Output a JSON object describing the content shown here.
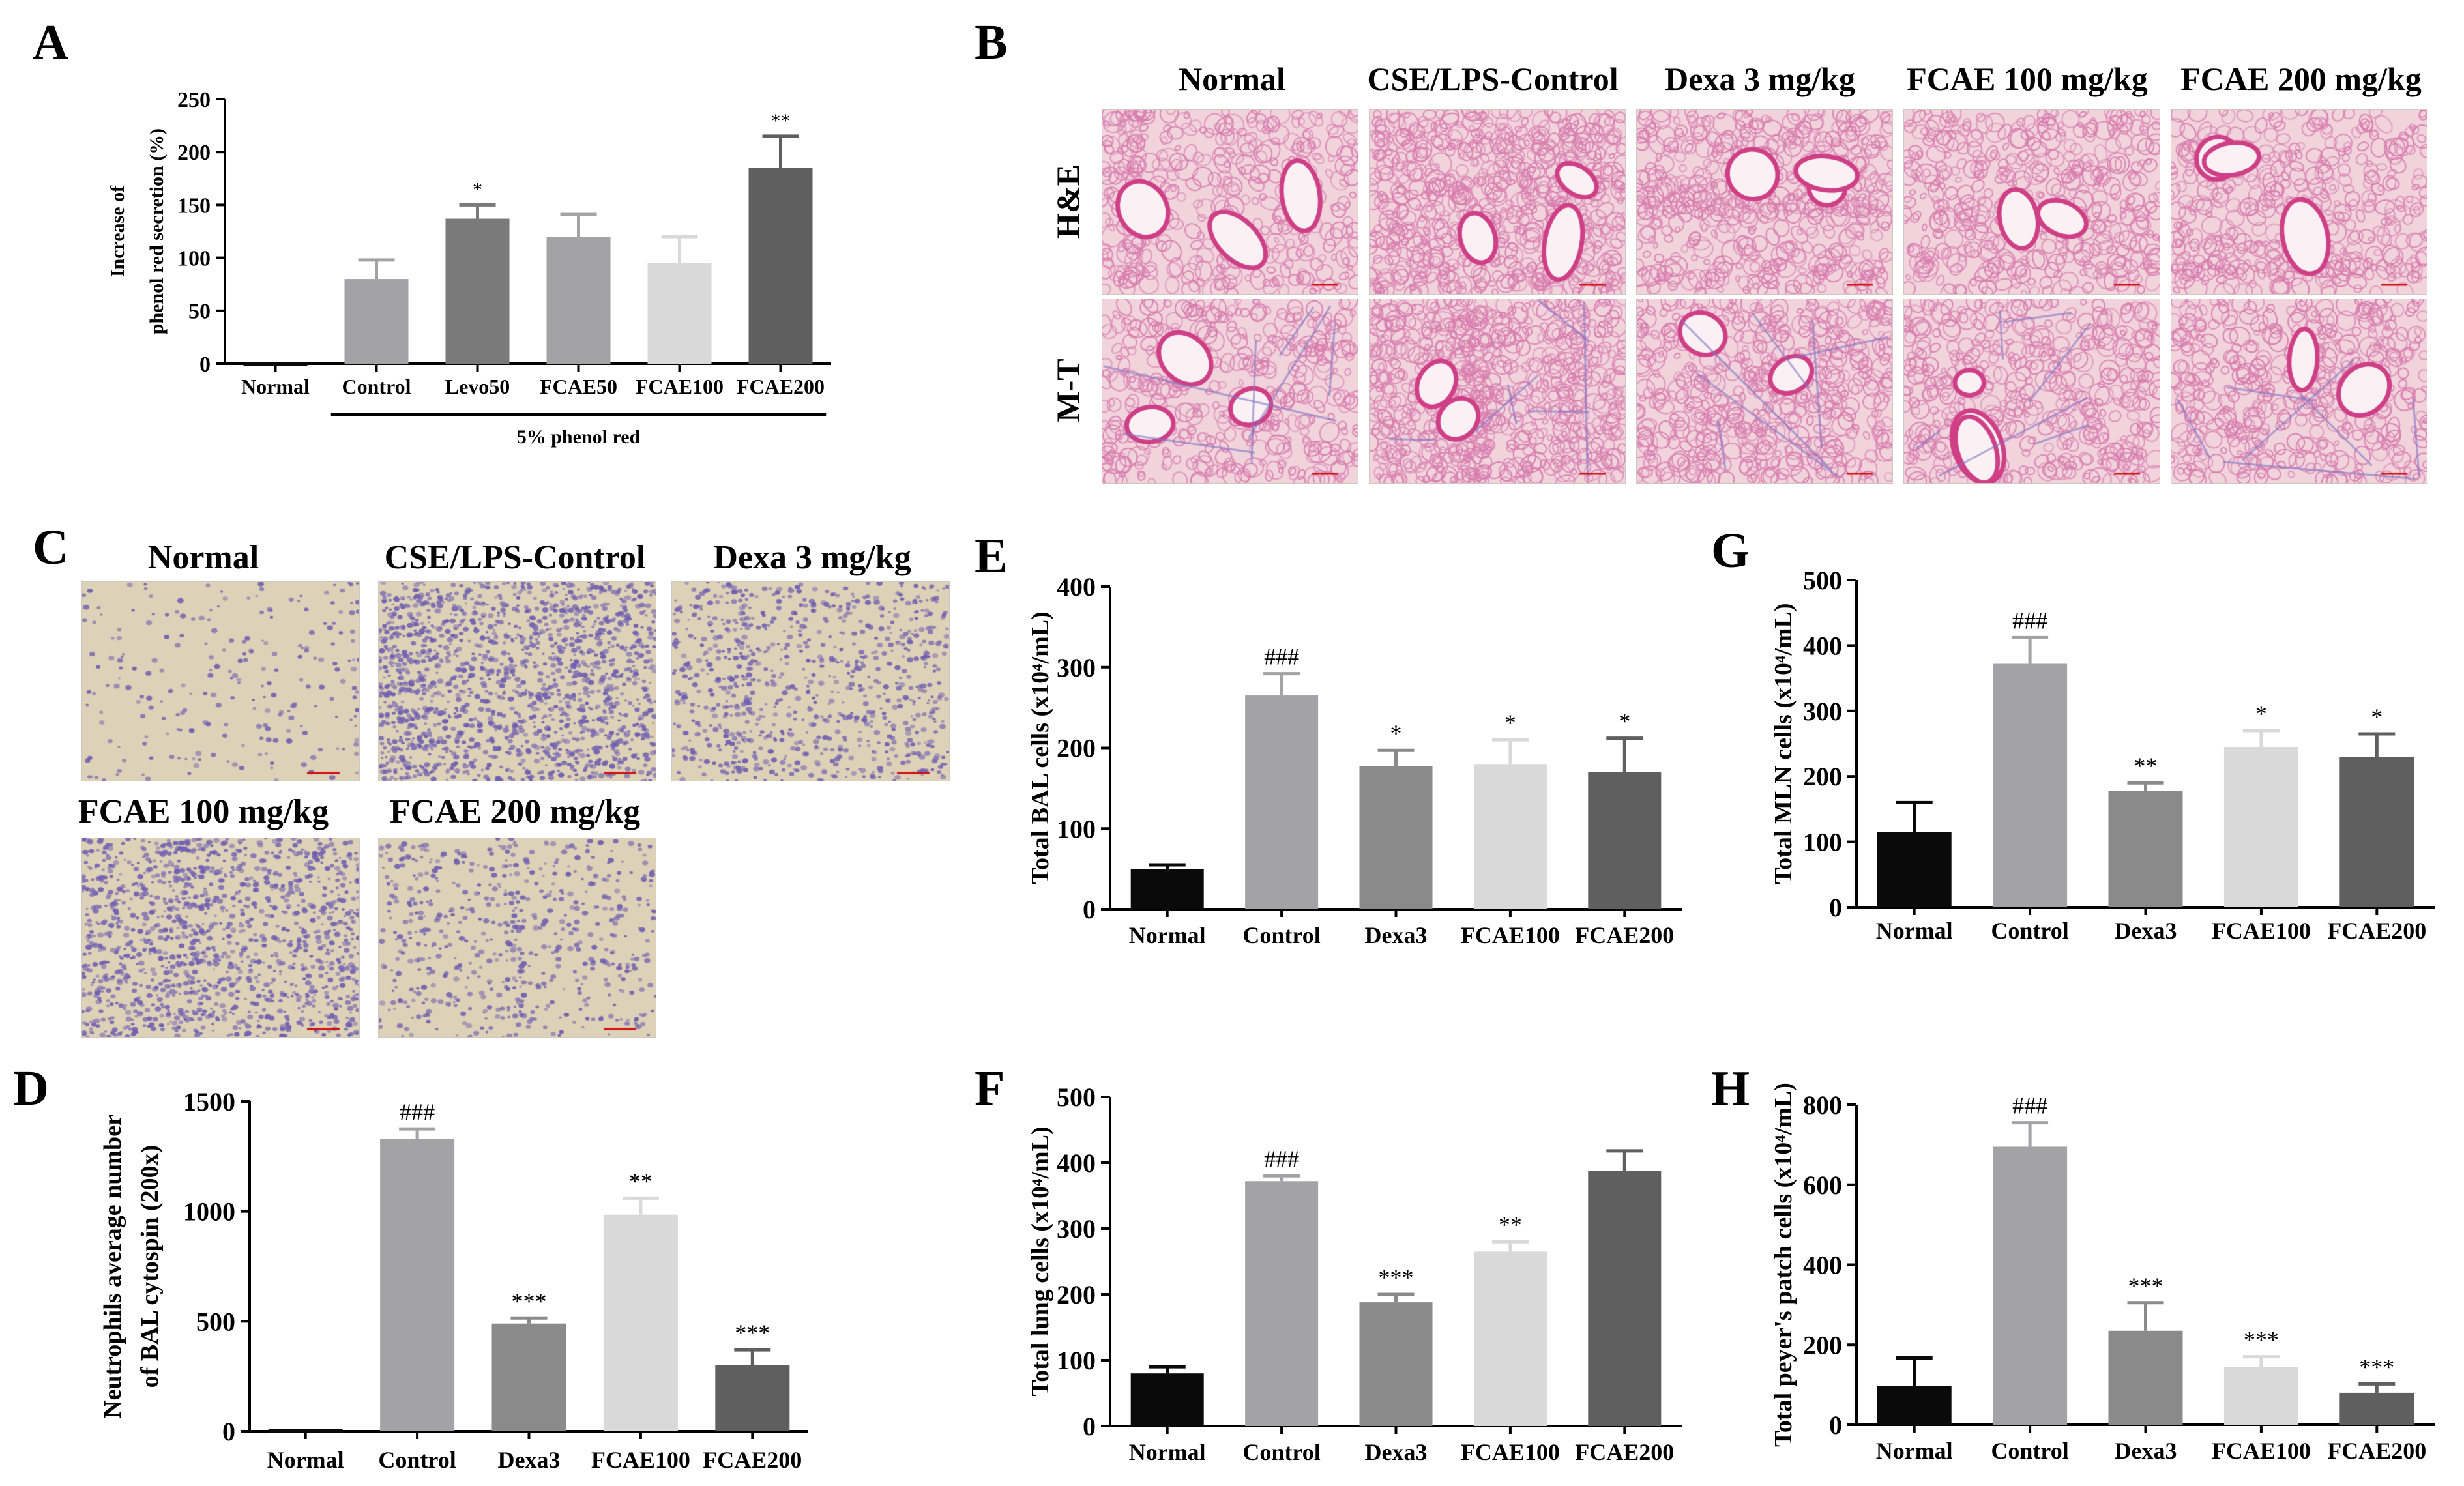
{
  "palette": {
    "black": "#0a0a0a",
    "dark": "#5f5f5f",
    "mid": "#8a8a8a",
    "grey": "#a3a3a6",
    "light": "#d9d9d9",
    "he_bg": "#f1d3dc",
    "he_tissue": "#d87cae",
    "he_airway": "#cf3f86",
    "cyto_bg": "#ddd1b7",
    "cyto_cell": "#6f5fb0"
  },
  "panel_letters": {
    "A": "A",
    "B": "B",
    "C": "C",
    "D": "D",
    "E": "E",
    "F": "F",
    "G": "G",
    "H": "H"
  },
  "histology": {
    "columns": [
      "Normal",
      "CSE/LPS-Control",
      "Dexa 3 mg/kg",
      "FCAE 100 mg/kg",
      "FCAE 200 mg/kg"
    ],
    "rows": [
      "H&E",
      "M-T"
    ],
    "tissue_density": [
      0.35,
      0.95,
      0.6,
      0.45,
      0.4
    ]
  },
  "cytospin": {
    "labels": [
      "Normal",
      "CSE/LPS-Control",
      "Dexa 3 mg/kg",
      "FCAE 100 mg/kg",
      "FCAE 200 mg/kg"
    ],
    "cell_density": [
      0.12,
      0.95,
      0.5,
      0.8,
      0.35
    ]
  },
  "chart_data": [
    {
      "panel": "A",
      "type": "bar",
      "categories": [
        "Normal",
        "Control",
        "Levo50",
        "FCAE50",
        "FCAE100",
        "FCAE200"
      ],
      "values": [
        0,
        80,
        137,
        120,
        95,
        185
      ],
      "errors": [
        0,
        18,
        13,
        21,
        25,
        30
      ],
      "significance": [
        "",
        "",
        "*",
        "",
        "",
        "**"
      ],
      "colors": [
        "#0a0a0a",
        "#a3a3a6",
        "#7a7a7a",
        "#a3a3a6",
        "#d9d9d9",
        "#5f5f5f"
      ],
      "ylabel": [
        "Increase of",
        "phenol red secretion (%)"
      ],
      "ylim": [
        0,
        250
      ],
      "yticks": [
        0,
        50,
        100,
        150,
        200,
        250
      ],
      "group_label": "5% phenol red",
      "group_span": [
        1,
        5
      ]
    },
    {
      "panel": "D",
      "type": "bar",
      "categories": [
        "Normal",
        "Control",
        "Dexa3",
        "FCAE100",
        "FCAE200"
      ],
      "values": [
        0,
        1330,
        490,
        985,
        300
      ],
      "errors": [
        0,
        45,
        25,
        75,
        70
      ],
      "significance": [
        "",
        "###",
        "***",
        "**",
        "***"
      ],
      "colors": [
        "#0a0a0a",
        "#a3a3a6",
        "#8a8a8a",
        "#d9d9d9",
        "#5f5f5f"
      ],
      "ylabel": [
        "Neutrophils average number",
        "of BAL cytospin (200x)"
      ],
      "ylim": [
        0,
        1500
      ],
      "yticks": [
        0,
        500,
        1000,
        1500
      ]
    },
    {
      "panel": "E",
      "type": "bar",
      "categories": [
        "Normal",
        "Control",
        "Dexa3",
        "FCAE100",
        "FCAE200"
      ],
      "values": [
        50,
        265,
        177,
        180,
        170
      ],
      "errors": [
        5,
        27,
        20,
        30,
        42
      ],
      "significance": [
        "",
        "###",
        "*",
        "*",
        "*"
      ],
      "colors": [
        "#0a0a0a",
        "#a3a3a6",
        "#8a8a8a",
        "#d9d9d9",
        "#5f5f5f"
      ],
      "ylabel": [
        "Total BAL cells (x10⁴/mL)"
      ],
      "ylim": [
        0,
        400
      ],
      "yticks": [
        0,
        100,
        200,
        300,
        400
      ]
    },
    {
      "panel": "F",
      "type": "bar",
      "categories": [
        "Normal",
        "Control",
        "Dexa3",
        "FCAE100",
        "FCAE200"
      ],
      "values": [
        80,
        372,
        188,
        265,
        388
      ],
      "errors": [
        10,
        8,
        12,
        15,
        30
      ],
      "significance": [
        "",
        "###",
        "***",
        "**",
        ""
      ],
      "colors": [
        "#0a0a0a",
        "#a3a3a6",
        "#8a8a8a",
        "#d9d9d9",
        "#5f5f5f"
      ],
      "ylabel": [
        "Total lung cells (x10⁴/mL)"
      ],
      "ylim": [
        0,
        500
      ],
      "yticks": [
        0,
        100,
        200,
        300,
        400,
        500
      ]
    },
    {
      "panel": "G",
      "type": "bar",
      "categories": [
        "Normal",
        "Control",
        "Dexa3",
        "FCAE100",
        "FCAE200"
      ],
      "values": [
        115,
        372,
        178,
        245,
        230
      ],
      "errors": [
        45,
        40,
        12,
        25,
        35
      ],
      "significance": [
        "",
        "###",
        "**",
        "*",
        "*"
      ],
      "colors": [
        "#0a0a0a",
        "#a3a3a6",
        "#8a8a8a",
        "#d9d9d9",
        "#5f5f5f"
      ],
      "ylabel": [
        "Total MLN cells (x10⁴/mL)"
      ],
      "ylim": [
        0,
        500
      ],
      "yticks": [
        0,
        100,
        200,
        300,
        400,
        500
      ]
    },
    {
      "panel": "H",
      "type": "bar",
      "categories": [
        "Normal",
        "Control",
        "Dexa3",
        "FCAE100",
        "FCAE200"
      ],
      "values": [
        97,
        695,
        235,
        145,
        80
      ],
      "errors": [
        70,
        60,
        70,
        25,
        22
      ],
      "significance": [
        "",
        "###",
        "***",
        "***",
        "***"
      ],
      "colors": [
        "#0a0a0a",
        "#a3a3a6",
        "#8a8a8a",
        "#d9d9d9",
        "#5f5f5f"
      ],
      "ylabel": [
        "Total peyer's patch cells (x10⁴/mL)"
      ],
      "ylim": [
        0,
        800
      ],
      "yticks": [
        0,
        200,
        400,
        600,
        800
      ]
    }
  ]
}
